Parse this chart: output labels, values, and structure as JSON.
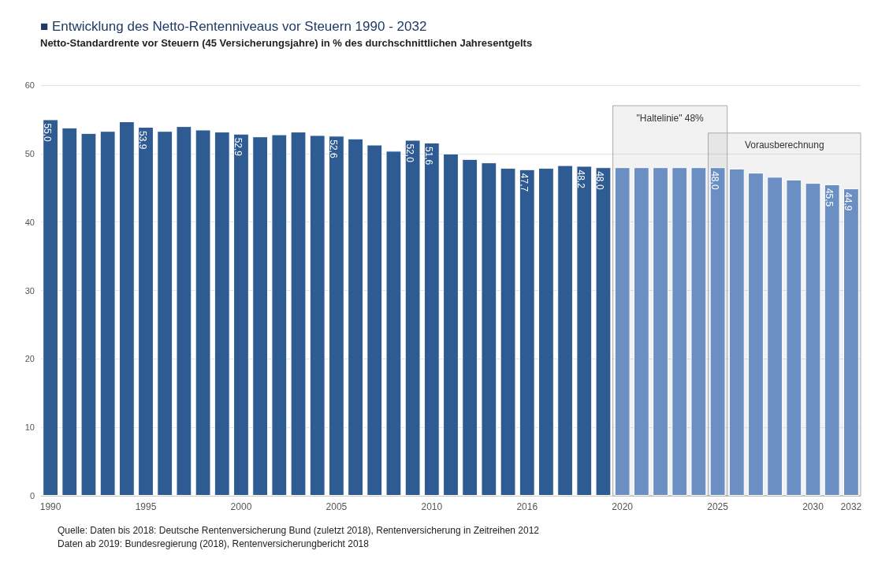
{
  "chart_data": {
    "type": "bar",
    "title": "■ Entwicklung des Netto-Rentenniveaus vor Steuern 1990 - 2032",
    "subtitle": "Netto-Standardrente vor Steuern (45 Versicherungsjahre) in % des durchschnittlichen Jahresentgelts",
    "categories": [
      "1990",
      null,
      null,
      null,
      null,
      "1995",
      null,
      null,
      null,
      null,
      "2000",
      null,
      null,
      null,
      null,
      "2005",
      null,
      null,
      null,
      null,
      "2010",
      null,
      null,
      null,
      null,
      "2016",
      null,
      null,
      null,
      null,
      "2020",
      null,
      null,
      null,
      null,
      "2025",
      null,
      null,
      null,
      null,
      "2030",
      null,
      "2032"
    ],
    "values": [
      55.0,
      53.8,
      53.0,
      53.3,
      54.7,
      53.9,
      53.3,
      54.0,
      53.5,
      53.2,
      52.9,
      52.5,
      52.8,
      53.2,
      52.7,
      52.6,
      52.2,
      51.3,
      50.4,
      52.0,
      51.6,
      50.0,
      49.2,
      48.7,
      47.9,
      47.7,
      47.9,
      48.3,
      48.2,
      48.0,
      48.0,
      48.0,
      48.0,
      48.0,
      48.0,
      48.0,
      47.8,
      47.2,
      46.6,
      46.2,
      45.7,
      45.5,
      44.9
    ],
    "value_labels": [
      "55,0",
      null,
      null,
      null,
      null,
      "53,9",
      null,
      null,
      null,
      null,
      "52,9",
      null,
      null,
      null,
      null,
      "52,6",
      null,
      null,
      null,
      "52,0",
      "51,6",
      null,
      null,
      null,
      null,
      "47,7",
      null,
      null,
      "48,2",
      "48,0",
      null,
      null,
      null,
      null,
      null,
      "48,0",
      null,
      null,
      null,
      null,
      null,
      "45,5",
      "44,9"
    ],
    "colors": [
      "#2f5b93",
      "#2f5b93",
      "#2f5b93",
      "#2f5b93",
      "#2f5b93",
      "#2f5b93",
      "#2f5b93",
      "#2f5b93",
      "#2f5b93",
      "#2f5b93",
      "#2f5b93",
      "#2f5b93",
      "#2f5b93",
      "#2f5b93",
      "#2f5b93",
      "#2f5b93",
      "#2f5b93",
      "#2f5b93",
      "#2f5b93",
      "#2f5b93",
      "#2f5b93",
      "#2f5b93",
      "#2f5b93",
      "#2f5b93",
      "#2f5b93",
      "#2f5b93",
      "#2f5b93",
      "#2f5b93",
      "#2f5b93",
      "#2f5b93",
      "#6b8fc2",
      "#6b8fc2",
      "#6b8fc2",
      "#6b8fc2",
      "#6b8fc2",
      "#6b8fc2",
      "#6b8fc2",
      "#6b8fc2",
      "#6b8fc2",
      "#6b8fc2",
      "#6b8fc2",
      "#6b8fc2",
      "#6b8fc2"
    ],
    "ylim": [
      0,
      60
    ],
    "yticks": [
      0,
      10,
      20,
      30,
      40,
      50,
      60
    ],
    "grid": "y",
    "bands": [
      {
        "axis": "x",
        "from": "2020",
        "to": "2025",
        "label": "\"Haltelinie\" 48%"
      },
      {
        "axis": "x",
        "from": "2025",
        "to": "2032",
        "label": "Vorausberechnung"
      }
    ],
    "annotations": [
      "Quelle: Daten bis 2018: Deutsche Rentenversicherung Bund (zuletzt 2018), Rentenversicherung in Zeitreihen 2012",
      "Daten ab 2019: Bundesregierung (2018), Rentenversicherungbericht 2018"
    ]
  }
}
